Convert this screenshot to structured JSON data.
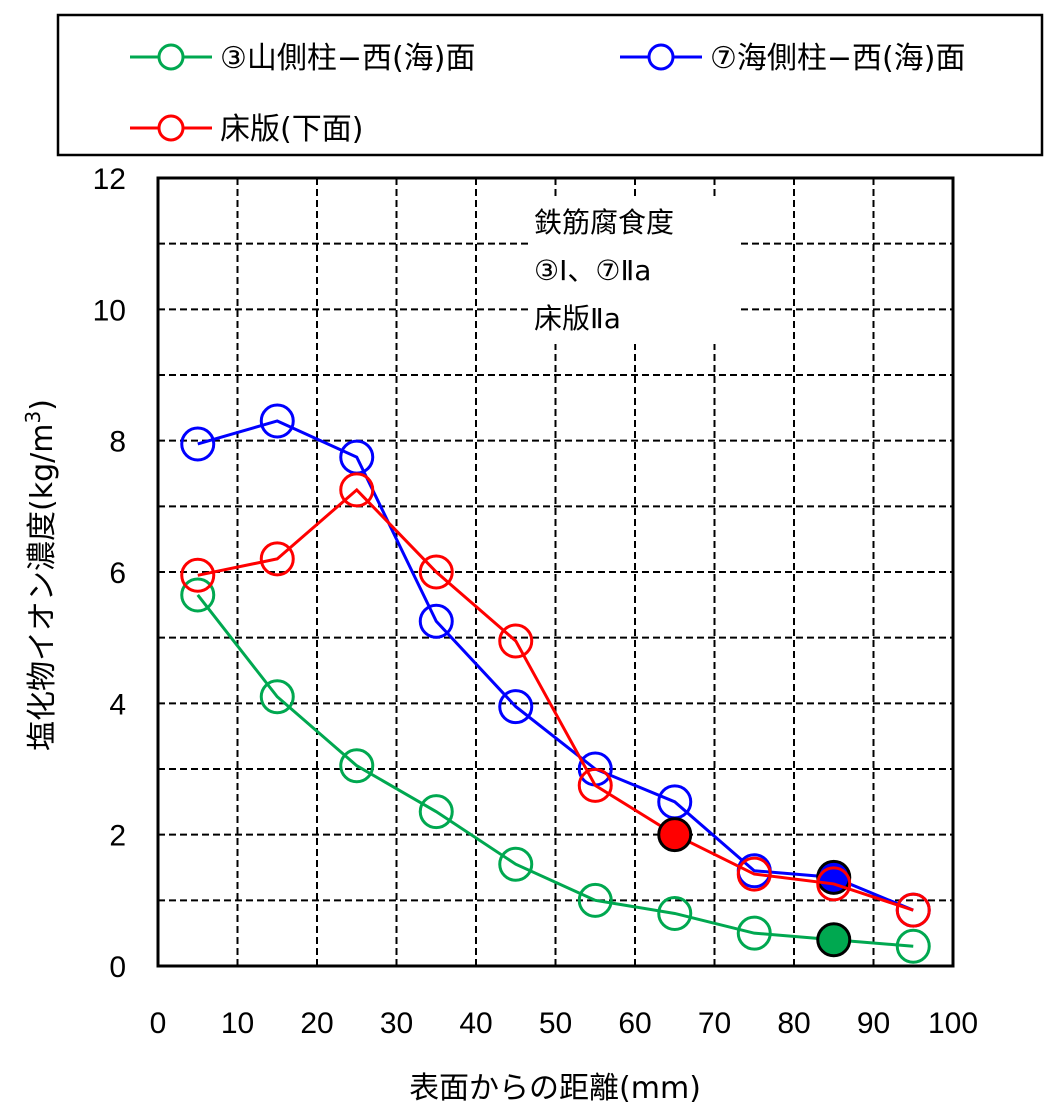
{
  "chart_data": {
    "type": "line",
    "title": "",
    "xlabel": "表面からの距離(mm)",
    "ylabel": "塩化物イオン濃度(kg/m³)",
    "xlim": [
      0,
      100
    ],
    "ylim": [
      0,
      12
    ],
    "xticks": [
      "0",
      "10",
      "20",
      "30",
      "40",
      "50",
      "60",
      "70",
      "80",
      "90",
      "100"
    ],
    "yticks": [
      "0",
      "2",
      "4",
      "6",
      "8",
      "10",
      "12"
    ],
    "grid": true,
    "legend_position": "top",
    "series": [
      {
        "name": "③山側柱−西(海)面",
        "color": "#00a850",
        "x": [
          5,
          15,
          25,
          35,
          45,
          55,
          65,
          75,
          95
        ],
        "y": [
          5.65,
          4.1,
          3.05,
          2.35,
          1.55,
          1.0,
          0.8,
          0.5,
          0.3
        ],
        "highlight": {
          "x": 85,
          "y": 0.4
        }
      },
      {
        "name": "⑦海側柱−西(海)面",
        "color": "#0000ff",
        "x": [
          5,
          15,
          25,
          35,
          45,
          55,
          65,
          75,
          95
        ],
        "y": [
          7.95,
          8.3,
          7.75,
          5.25,
          3.95,
          3.0,
          2.5,
          1.45,
          0.85
        ],
        "highlight": {
          "x": 85,
          "y": 1.35
        }
      },
      {
        "name": "床版(下面)",
        "color": "#ff0000",
        "x": [
          5,
          15,
          25,
          35,
          45,
          55,
          75,
          85,
          95
        ],
        "y": [
          5.95,
          6.2,
          7.25,
          6.0,
          4.95,
          2.75,
          1.4,
          1.25,
          0.85
        ],
        "highlight": {
          "x": 65,
          "y": 2.0
        }
      }
    ],
    "annotation": [
      "鉄筋腐食度",
      "③Ⅰ、⑦Ⅱa",
      "床版Ⅱa"
    ]
  }
}
